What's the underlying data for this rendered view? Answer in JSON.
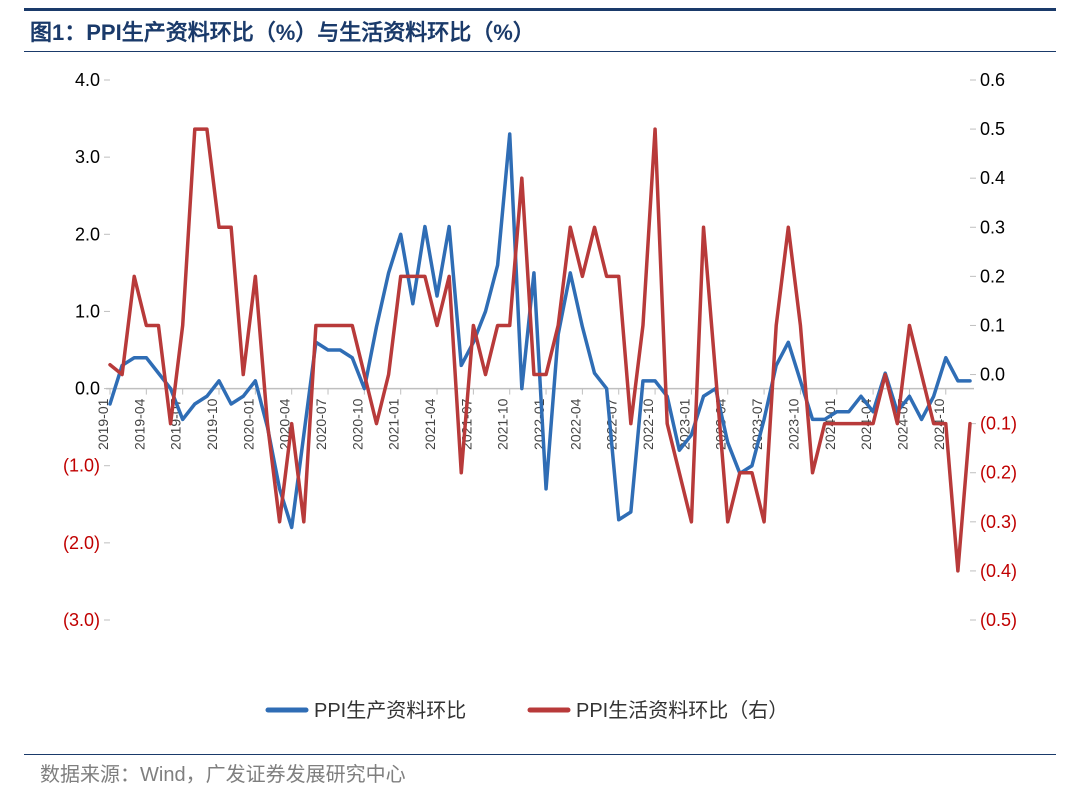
{
  "title": "图1：PPI生产资料环比（%）与生活资料环比（%）",
  "source": "数据来源：Wind，广发证券发展研究中心",
  "chart": {
    "type": "dual-axis-line",
    "background_color": "#ffffff",
    "title_color": "#1a3a6a",
    "title_fontsize": 22,
    "axis_color": "#bfbfbf",
    "line_width": 3.5,
    "series": [
      {
        "name": "PPI生产资料环比",
        "axis": "left",
        "color": "#2f6db5",
        "data": [
          -0.2,
          0.3,
          0.4,
          0.4,
          0.2,
          0.0,
          -0.4,
          -0.2,
          -0.1,
          0.1,
          -0.2,
          -0.1,
          0.1,
          -0.5,
          -1.3,
          -1.8,
          -0.6,
          0.6,
          0.5,
          0.5,
          0.4,
          0.0,
          0.8,
          1.5,
          2.0,
          1.1,
          2.1,
          1.2,
          2.1,
          0.3,
          0.6,
          1.0,
          1.6,
          3.3,
          0.0,
          1.5,
          -1.3,
          0.7,
          1.5,
          0.8,
          0.2,
          0.0,
          -1.7,
          -1.6,
          0.1,
          0.1,
          -0.1,
          -0.8,
          -0.6,
          -0.1,
          0.0,
          -0.7,
          -1.1,
          -1.0,
          -0.4,
          0.3,
          0.6,
          0.1,
          -0.4,
          -0.4,
          -0.3,
          -0.3,
          -0.1,
          -0.3,
          0.2,
          -0.3,
          -0.1,
          -0.4,
          -0.1,
          0.4,
          0.1,
          0.1
        ]
      },
      {
        "name": "PPI生活资料环比（右）",
        "axis": "right",
        "color": "#b83a3a",
        "data": [
          0.02,
          0.0,
          0.2,
          0.1,
          0.1,
          -0.1,
          0.1,
          0.5,
          0.5,
          0.3,
          0.3,
          0.0,
          0.2,
          -0.1,
          -0.3,
          -0.1,
          -0.3,
          0.1,
          0.1,
          0.1,
          0.1,
          0.0,
          -0.1,
          0.0,
          0.2,
          0.2,
          0.2,
          0.1,
          0.2,
          -0.2,
          0.1,
          0.0,
          0.1,
          0.1,
          0.4,
          0.0,
          0.0,
          0.1,
          0.3,
          0.2,
          0.3,
          0.2,
          0.2,
          -0.1,
          0.1,
          0.5,
          -0.1,
          -0.2,
          -0.3,
          0.3,
          0.0,
          -0.3,
          -0.2,
          -0.2,
          -0.3,
          0.1,
          0.3,
          0.1,
          -0.2,
          -0.1,
          -0.1,
          -0.1,
          -0.1,
          -0.1,
          0.0,
          -0.1,
          0.1,
          0.0,
          -0.1,
          -0.1,
          -0.4,
          -0.1
        ]
      }
    ],
    "x_categories": [
      "2019-01",
      "2019-02",
      "2019-03",
      "2019-04",
      "2019-05",
      "2019-06",
      "2019-07",
      "2019-08",
      "2019-09",
      "2019-10",
      "2019-11",
      "2019-12",
      "2020-01",
      "2020-02",
      "2020-03",
      "2020-04",
      "2020-05",
      "2020-06",
      "2020-07",
      "2020-08",
      "2020-09",
      "2020-10",
      "2020-11",
      "2020-12",
      "2021-01",
      "2021-02",
      "2021-03",
      "2021-04",
      "2021-05",
      "2021-06",
      "2021-07",
      "2021-08",
      "2021-09",
      "2021-10",
      "2021-11",
      "2021-12",
      "2022-01",
      "2022-02",
      "2022-03",
      "2022-04",
      "2022-05",
      "2022-06",
      "2022-07",
      "2022-08",
      "2022-09",
      "2022-10",
      "2022-11",
      "2022-12",
      "2023-01",
      "2023-02",
      "2023-03",
      "2023-04",
      "2023-05",
      "2023-06",
      "2023-07",
      "2023-08",
      "2023-09",
      "2023-10",
      "2023-11",
      "2023-12",
      "2024-01",
      "2024-02",
      "2024-03",
      "2024-04",
      "2024-05",
      "2024-06",
      "2024-07",
      "2024-08",
      "2024-09",
      "2024-10",
      "2024-11",
      "2024-12"
    ],
    "x_tick_every": 3,
    "left_axis": {
      "min": -3.0,
      "max": 4.0,
      "ticks": [
        4.0,
        3.0,
        2.0,
        1.0,
        0.0,
        -1.0,
        -2.0,
        -3.0
      ],
      "labels": [
        "4.0",
        "3.0",
        "2.0",
        "1.0",
        "0.0",
        "(1.0)",
        "(2.0)",
        "(3.0)"
      ],
      "label_fontsize": 18,
      "positive_color": "#000000",
      "negative_color": "#c00000"
    },
    "right_axis": {
      "min": -0.5,
      "max": 0.6,
      "ticks": [
        0.6,
        0.5,
        0.4,
        0.3,
        0.2,
        0.1,
        0.0,
        -0.1,
        -0.2,
        -0.3,
        -0.4,
        -0.5
      ],
      "labels": [
        "0.6",
        "0.5",
        "0.4",
        "0.3",
        "0.2",
        "0.1",
        "0.0",
        "(0.1)",
        "(0.2)",
        "(0.3)",
        "(0.4)",
        "(0.5)"
      ],
      "label_fontsize": 18,
      "positive_color": "#000000",
      "negative_color": "#c00000"
    },
    "legend": {
      "position": "bottom-center",
      "items": [
        {
          "label": "PPI生产资料环比",
          "color": "#2f6db5"
        },
        {
          "label": "PPI生活资料环比（右）",
          "color": "#b83a3a"
        }
      ]
    }
  }
}
